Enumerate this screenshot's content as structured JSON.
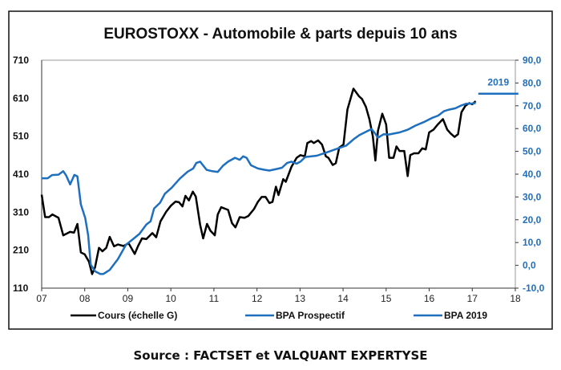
{
  "chart_data": {
    "type": "line",
    "title": "EUROSTOXX - Automobile & parts  depuis 10 ans",
    "x_ticks": [
      "07",
      "08",
      "09",
      "10",
      "11",
      "12",
      "13",
      "14",
      "15",
      "16",
      "17",
      "18"
    ],
    "xlim": [
      7,
      18
    ],
    "y_left": {
      "ticks": [
        "710",
        "610",
        "510",
        "410",
        "310",
        "210",
        "110"
      ],
      "ylim": [
        110,
        710
      ]
    },
    "y_right": {
      "ticks": [
        "90,0",
        "80,0",
        "70,0",
        "60,0",
        "50,0",
        "40,0",
        "30,0",
        "20,0",
        "10,0",
        "0,0",
        "-10,0"
      ],
      "ylim": [
        -10,
        90
      ]
    },
    "grid": false,
    "legend_position": "bottom",
    "colors": {
      "cours": "#000000",
      "bpa": "#1f6fbf"
    },
    "series": [
      {
        "name": "Cours (échelle G)",
        "axis": "left",
        "color": "#000000",
        "x": [
          7.0,
          7.08,
          7.17,
          7.25,
          7.39,
          7.5,
          7.66,
          7.75,
          7.83,
          7.91,
          8.0,
          8.1,
          8.17,
          8.24,
          8.33,
          8.41,
          8.5,
          8.58,
          8.68,
          8.77,
          8.9,
          9.02,
          9.16,
          9.24,
          9.33,
          9.43,
          9.57,
          9.66,
          9.76,
          9.89,
          10.0,
          10.11,
          10.19,
          10.27,
          10.34,
          10.42,
          10.51,
          10.58,
          10.68,
          10.75,
          10.84,
          10.92,
          11.02,
          11.09,
          11.17,
          11.33,
          11.42,
          11.5,
          11.6,
          11.71,
          11.8,
          11.93,
          12.02,
          12.11,
          12.2,
          12.29,
          12.36,
          12.44,
          12.5,
          12.61,
          12.67,
          12.8,
          12.92,
          13.01,
          13.11,
          13.17,
          13.26,
          13.32,
          13.42,
          13.51,
          13.6,
          13.66,
          13.76,
          13.83,
          13.91,
          14.01,
          14.1,
          14.24,
          14.37,
          14.44,
          14.53,
          14.61,
          14.69,
          14.75,
          14.81,
          14.91,
          15.0,
          15.07,
          15.17,
          15.24,
          15.31,
          15.42,
          15.5,
          15.56,
          15.65,
          15.75,
          15.84,
          15.92,
          16.0,
          16.1,
          16.2,
          16.32,
          16.42,
          16.5,
          16.59,
          16.67,
          16.75,
          16.84,
          16.93,
          17.0,
          17.08
        ],
        "y": [
          356,
          297,
          297,
          304,
          295,
          249,
          258,
          256,
          279,
          204,
          199,
          179,
          147,
          165,
          216,
          207,
          216,
          245,
          220,
          225,
          221,
          228,
          200,
          221,
          241,
          239,
          255,
          244,
          286,
          311,
          327,
          338,
          336,
          325,
          353,
          341,
          364,
          351,
          277,
          241,
          279,
          261,
          249,
          304,
          323,
          316,
          281,
          270,
          297,
          295,
          300,
          318,
          337,
          350,
          350,
          334,
          337,
          377,
          355,
          397,
          390,
          429,
          453,
          460,
          457,
          492,
          497,
          492,
          499,
          488,
          457,
          453,
          434,
          439,
          480,
          488,
          580,
          635,
          615,
          608,
          587,
          555,
          510,
          446,
          524,
          569,
          541,
          453,
          453,
          483,
          471,
          471,
          405,
          460,
          465,
          465,
          478,
          475,
          520,
          527,
          541,
          555,
          527,
          517,
          508,
          515,
          573,
          590,
          597,
          594,
          602
        ]
      },
      {
        "name": "BPA Prospectif",
        "axis": "right",
        "color": "#1f6fbf",
        "x": [
          7.0,
          7.14,
          7.24,
          7.39,
          7.5,
          7.57,
          7.66,
          7.76,
          7.83,
          7.91,
          8.01,
          8.08,
          8.14,
          8.24,
          8.36,
          8.43,
          8.58,
          8.77,
          8.96,
          9.14,
          9.27,
          9.43,
          9.53,
          9.61,
          9.75,
          9.86,
          10.02,
          10.21,
          10.39,
          10.52,
          10.59,
          10.68,
          10.83,
          10.96,
          11.09,
          11.21,
          11.33,
          11.49,
          11.6,
          11.68,
          11.76,
          11.86,
          12.02,
          12.18,
          12.29,
          12.46,
          12.58,
          12.7,
          12.8,
          12.92,
          13.01,
          13.12,
          13.39,
          13.63,
          13.88,
          14.07,
          14.25,
          14.38,
          14.53,
          14.66,
          14.74,
          14.81,
          14.94,
          15.06,
          15.31,
          15.5,
          15.68,
          15.87,
          16.06,
          16.21,
          16.34,
          16.46,
          16.61,
          16.74,
          16.86,
          16.99,
          17.08
        ],
        "y": [
          38.2,
          38.2,
          39.6,
          39.8,
          41.3,
          39.4,
          35.5,
          39.7,
          39.0,
          26.7,
          20.8,
          13.2,
          0.3,
          -2.6,
          -3.8,
          -3.8,
          -2.0,
          2.7,
          9.1,
          11.8,
          13.8,
          17.9,
          19.3,
          24.9,
          27.5,
          31.4,
          34.1,
          38.1,
          41.1,
          42.5,
          44.9,
          45.5,
          41.9,
          41.3,
          41.0,
          43.7,
          45.5,
          47.2,
          46.3,
          47.8,
          47.2,
          43.9,
          42.5,
          41.9,
          41.6,
          42.3,
          42.8,
          44.9,
          45.5,
          44.6,
          45.5,
          47.5,
          48.1,
          49.6,
          51.3,
          52.5,
          55.4,
          57.2,
          58.6,
          59.8,
          58.0,
          56.0,
          57.5,
          57.4,
          58.3,
          59.5,
          61.3,
          62.8,
          64.6,
          65.7,
          67.6,
          68.3,
          68.9,
          70.1,
          70.9,
          71.0,
          71.2
        ]
      },
      {
        "name": "BPA 2019",
        "axis": "right",
        "color": "#1f6fbf",
        "x": [
          17.14,
          18.07
        ],
        "y": [
          75.3,
          75.3
        ],
        "annotation": "2019"
      }
    ],
    "source": "Source : FACTSET et VALQUANT EXPERTYSE"
  }
}
